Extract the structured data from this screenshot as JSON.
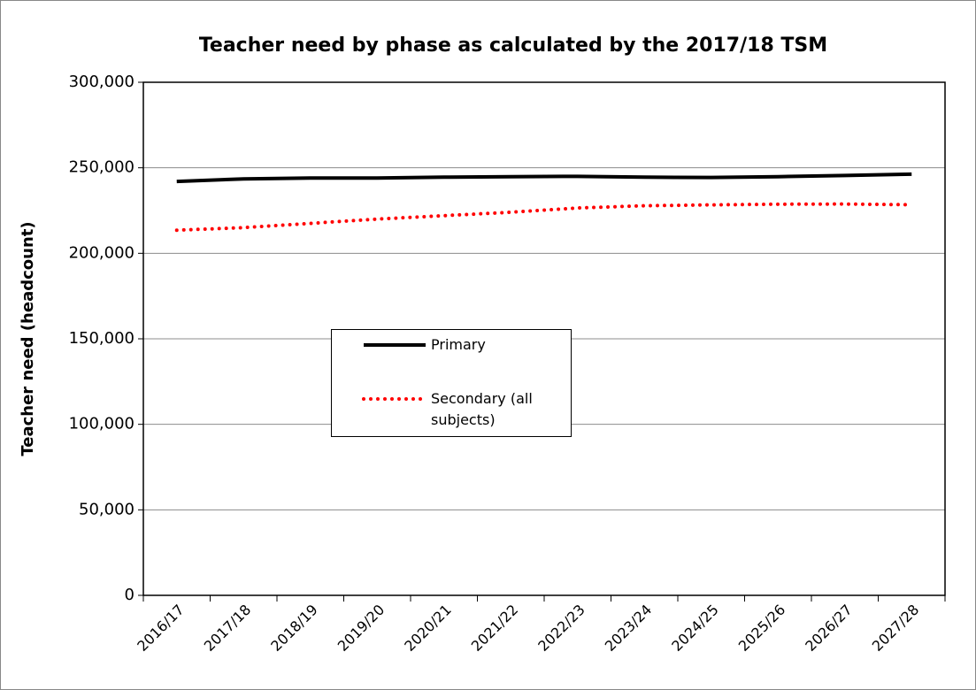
{
  "chart_data": {
    "type": "line",
    "title": "Teacher need by phase as calculated by the 2017/18 TSM",
    "y_label": "Teacher need (headcount)",
    "categories": [
      "2016/17",
      "2017/18",
      "2018/19",
      "2019/20",
      "2020/21",
      "2021/22",
      "2022/23",
      "2023/24",
      "2024/25",
      "2025/26",
      "2026/27",
      "2027/28"
    ],
    "series": [
      {
        "name": "Primary",
        "color": "#000000",
        "style": "solid",
        "values": [
          242000,
          243500,
          244000,
          244000,
          244500,
          244800,
          245000,
          244500,
          244300,
          244800,
          245500,
          246300
        ]
      },
      {
        "name": "Secondary (all subjects)",
        "color": "#ff0000",
        "style": "dotted",
        "values": [
          213500,
          215000,
          217500,
          220000,
          222000,
          224000,
          226500,
          227800,
          228300,
          228700,
          228800,
          228400
        ]
      }
    ],
    "ylim": [
      0,
      300000
    ],
    "yticks": [
      0,
      {
        "value": 50000,
        "label": "50,000"
      },
      {
        "value": 100000,
        "label": "100,000"
      },
      {
        "value": 150000,
        "label": "150,000"
      },
      {
        "value": 200000,
        "label": "200,000"
      },
      {
        "value": 250000,
        "label": "250,000"
      },
      {
        "value": 300000,
        "label": "300,000"
      }
    ],
    "grid": true,
    "legend": "center-left"
  }
}
